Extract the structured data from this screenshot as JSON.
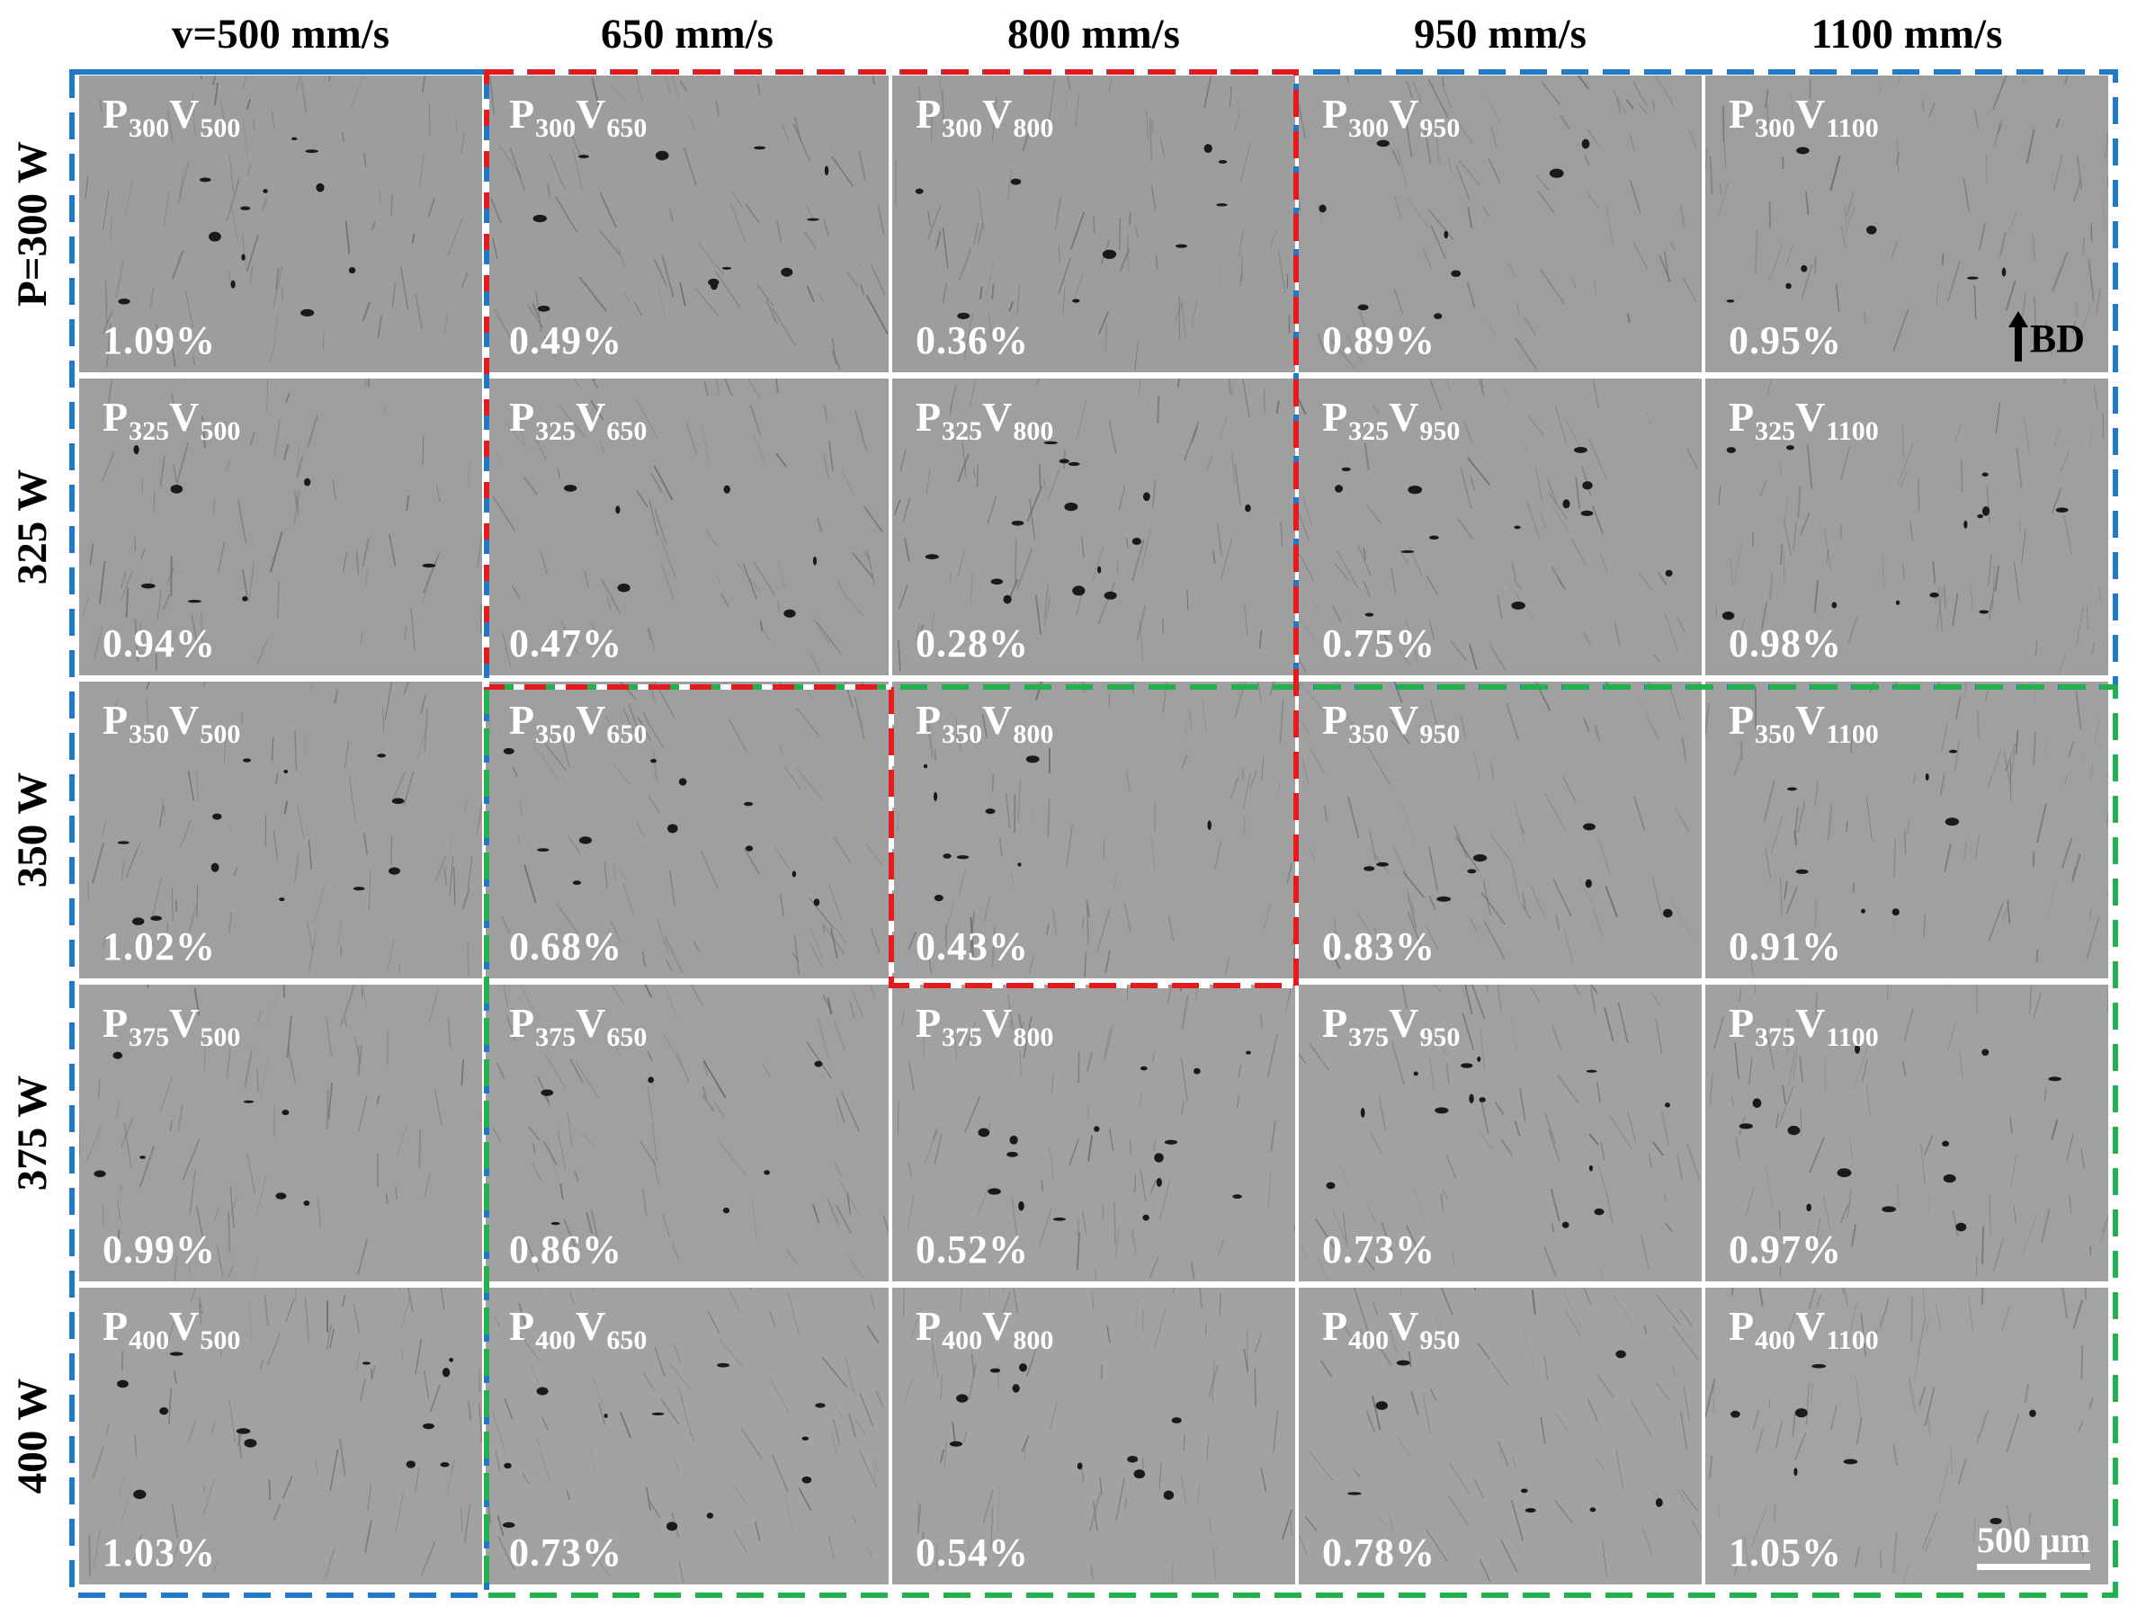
{
  "figure": {
    "column_headers": [
      "v=500 mm/s",
      "650 mm/s",
      "800 mm/s",
      "950 mm/s",
      "1100 mm/s"
    ],
    "row_headers": [
      "P=300 W",
      "325 W",
      "350 W",
      "375 W",
      "400 W"
    ],
    "build_direction_label": "BD",
    "scale_bar_label": "500 μm",
    "colors": {
      "blue_box": "#1f78c8",
      "red_box": "#e41a1c",
      "green_box": "#22b14c",
      "panel_gray": "#a9a9a9"
    },
    "rows": [
      {
        "cells": [
          {
            "p": "300",
            "v": "500",
            "porosity": "1.09%"
          },
          {
            "p": "300",
            "v": "650",
            "porosity": "0.49%"
          },
          {
            "p": "300",
            "v": "800",
            "porosity": "0.36%"
          },
          {
            "p": "300",
            "v": "950",
            "porosity": "0.89%"
          },
          {
            "p": "300",
            "v": "1100",
            "porosity": "0.95%"
          }
        ]
      },
      {
        "cells": [
          {
            "p": "325",
            "v": "500",
            "porosity": "0.94%"
          },
          {
            "p": "325",
            "v": "650",
            "porosity": "0.47%"
          },
          {
            "p": "325",
            "v": "800",
            "porosity": "0.28%"
          },
          {
            "p": "325",
            "v": "950",
            "porosity": "0.75%"
          },
          {
            "p": "325",
            "v": "1100",
            "porosity": "0.98%"
          }
        ]
      },
      {
        "cells": [
          {
            "p": "350",
            "v": "500",
            "porosity": "1.02%"
          },
          {
            "p": "350",
            "v": "650",
            "porosity": "0.68%"
          },
          {
            "p": "350",
            "v": "800",
            "porosity": "0.43%"
          },
          {
            "p": "350",
            "v": "950",
            "porosity": "0.83%"
          },
          {
            "p": "350",
            "v": "1100",
            "porosity": "0.91%"
          }
        ]
      },
      {
        "cells": [
          {
            "p": "375",
            "v": "500",
            "porosity": "0.99%"
          },
          {
            "p": "375",
            "v": "650",
            "porosity": "0.86%"
          },
          {
            "p": "375",
            "v": "800",
            "porosity": "0.52%"
          },
          {
            "p": "375",
            "v": "950",
            "porosity": "0.73%"
          },
          {
            "p": "375",
            "v": "1100",
            "porosity": "0.97%"
          }
        ]
      },
      {
        "cells": [
          {
            "p": "400",
            "v": "500",
            "porosity": "1.03%"
          },
          {
            "p": "400",
            "v": "650",
            "porosity": "0.73%"
          },
          {
            "p": "400",
            "v": "800",
            "porosity": "0.54%"
          },
          {
            "p": "400",
            "v": "950",
            "porosity": "0.78%"
          },
          {
            "p": "400",
            "v": "1100",
            "porosity": "1.05%"
          }
        ]
      }
    ]
  }
}
